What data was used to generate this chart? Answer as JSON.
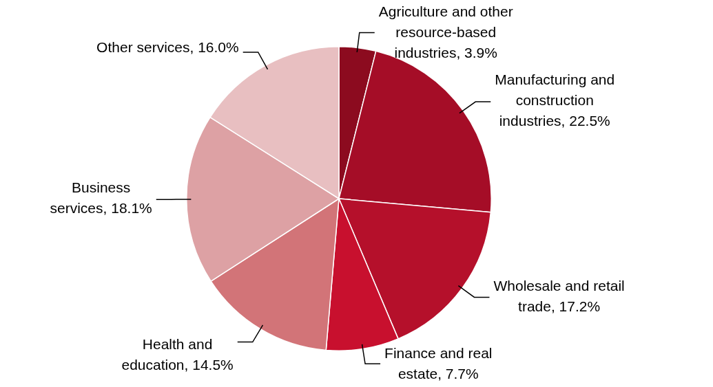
{
  "chart_data": {
    "type": "pie",
    "categories": [
      "Agriculture and other resource-based industries",
      "Manufacturing and construction industries",
      "Wholesale and retail trade",
      "Finance and real estate",
      "Health and education",
      "Business services",
      "Other services"
    ],
    "values": [
      3.9,
      22.5,
      17.2,
      7.7,
      14.5,
      18.1,
      16.0
    ],
    "value_labels": [
      "3.9%",
      "22.5%",
      "17.2%",
      "7.7%",
      "14.5%",
      "18.1%",
      "16.0%"
    ],
    "colors": [
      "#8c0b1f",
      "#a50d27",
      "#b5102b",
      "#c8102e",
      "#d27478",
      "#dda1a4",
      "#e8bfc1"
    ],
    "legend": false
  }
}
